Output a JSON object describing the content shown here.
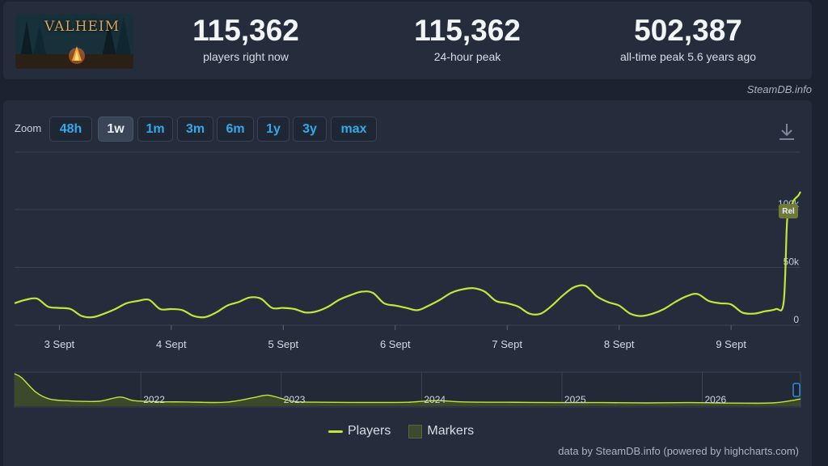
{
  "stats": {
    "current": {
      "value": "115,362",
      "label": "players right now"
    },
    "peak24": {
      "value": "115,362",
      "label": "24-hour peak"
    },
    "alltime": {
      "value": "502,387",
      "label": "all-time peak 5.6 years ago"
    }
  },
  "game": {
    "logo_text": "VALHEIM"
  },
  "source_credit": "SteamDB.info",
  "zoom": {
    "label": "Zoom",
    "buttons": [
      "48h",
      "1w",
      "1m",
      "3m",
      "6m",
      "1y",
      "3y",
      "max"
    ],
    "active": "1w"
  },
  "legend": {
    "players": "Players",
    "markers": "Markers"
  },
  "footer_credit": "data by SteamDB.info (powered by highcharts.com)",
  "colors": {
    "line": "#c2e63b",
    "grid": "#39424f",
    "navigator_fill": "#3b4a2a"
  },
  "chart_data": {
    "type": "line",
    "title": "",
    "series": [
      {
        "name": "Players"
      }
    ],
    "x_tick_labels": [
      "3 Sept",
      "4 Sept",
      "5 Sept",
      "6 Sept",
      "7 Sept",
      "8 Sept",
      "9 Sept"
    ],
    "y_tick_labels": [
      "0",
      "50k",
      "100k"
    ],
    "ylim": [
      0,
      100000
    ],
    "x": [
      2.6,
      2.7,
      2.8,
      2.9,
      3.0,
      3.1,
      3.2,
      3.3,
      3.4,
      3.5,
      3.6,
      3.7,
      3.8,
      3.9,
      4.0,
      4.1,
      4.2,
      4.3,
      4.4,
      4.5,
      4.6,
      4.7,
      4.8,
      4.9,
      5.0,
      5.1,
      5.2,
      5.3,
      5.4,
      5.5,
      5.6,
      5.7,
      5.8,
      5.9,
      6.0,
      6.1,
      6.2,
      6.3,
      6.4,
      6.5,
      6.6,
      6.7,
      6.8,
      6.9,
      7.0,
      7.1,
      7.2,
      7.3,
      7.4,
      7.5,
      7.6,
      7.7,
      7.8,
      7.9,
      8.0,
      8.1,
      8.2,
      8.3,
      8.4,
      8.5,
      8.6,
      8.7,
      8.8,
      8.9,
      9.0,
      9.1,
      9.2,
      9.3,
      9.4,
      9.47,
      9.5,
      9.53,
      9.56,
      9.6,
      9.62
    ],
    "values": [
      19000,
      22000,
      23000,
      16000,
      15000,
      14000,
      8000,
      7000,
      10000,
      14000,
      19000,
      21000,
      22000,
      14000,
      14000,
      13000,
      8000,
      7000,
      11000,
      17000,
      20000,
      24000,
      23000,
      15000,
      15000,
      14000,
      11000,
      12000,
      16000,
      22000,
      26000,
      29000,
      28000,
      19000,
      17000,
      15000,
      13000,
      17000,
      22000,
      28000,
      31000,
      32000,
      29000,
      21000,
      19000,
      16000,
      10000,
      10000,
      17000,
      26000,
      33000,
      34000,
      25000,
      20000,
      17000,
      10000,
      8000,
      10000,
      14000,
      20000,
      25000,
      27000,
      21000,
      19000,
      18000,
      11000,
      10000,
      12000,
      14000,
      20000,
      90000,
      100000,
      108000,
      112000,
      115362
    ],
    "annotation": "Rel",
    "navigator": {
      "year_labels": [
        "2022",
        "2023",
        "2024",
        "2025",
        "2026"
      ],
      "x": [
        2021.1,
        2021.15,
        2021.25,
        2021.35,
        2021.5,
        2021.7,
        2021.85,
        2021.95,
        2022.1,
        2022.3,
        2022.6,
        2022.8,
        2022.9,
        2023.0,
        2023.1,
        2023.3,
        2023.6,
        2023.9,
        2024.1,
        2024.3,
        2024.6,
        2025.0,
        2025.3,
        2025.6,
        2025.9,
        2026.2,
        2026.5,
        2026.7
      ],
      "values": [
        500000,
        440000,
        220000,
        110000,
        80000,
        75000,
        140000,
        85000,
        70000,
        65000,
        60000,
        130000,
        170000,
        120000,
        70000,
        60000,
        58000,
        60000,
        85000,
        65000,
        60000,
        55000,
        55000,
        50000,
        55000,
        48000,
        50000,
        110000
      ],
      "ylim": [
        0,
        500000
      ],
      "xlim": [
        2021.1,
        2026.7
      ]
    }
  }
}
